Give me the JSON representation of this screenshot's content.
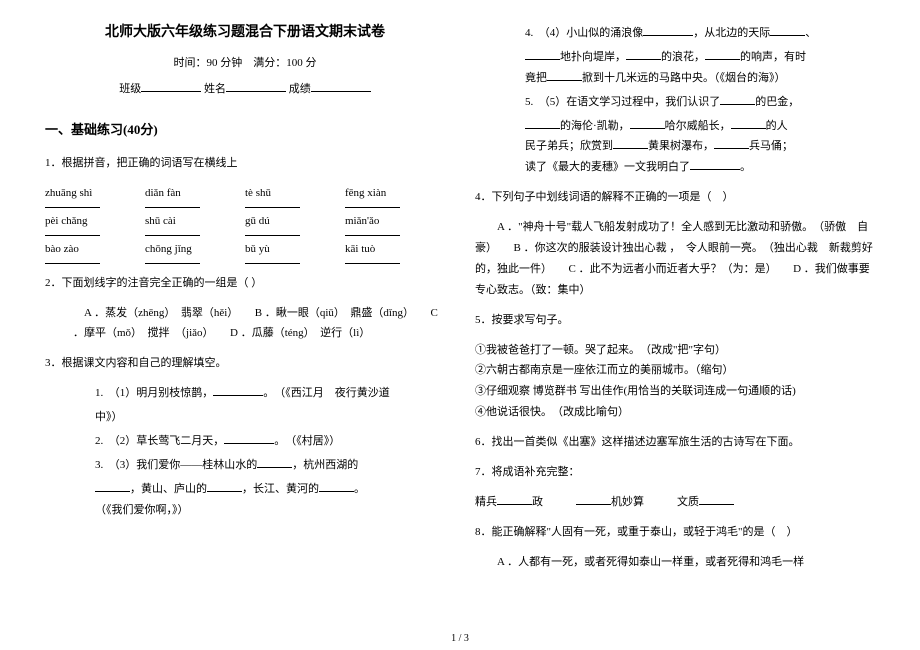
{
  "header": {
    "title": "北师大版六年级练习题混合下册语文期末试卷",
    "time_score": "时间：90 分钟　满分：100 分",
    "class_label": "班级",
    "name_label": "姓名",
    "score_label": "成绩"
  },
  "section1": {
    "heading": "一、基础练习(40分)",
    "q1": {
      "stem": "1．根据拼音，把正确的词语写在横线上",
      "row1": [
        "zhuāng shì",
        "diǎn fàn",
        "tè shū",
        "fēng xiàn"
      ],
      "row2": [
        "pèi chǎng",
        "shū cài",
        "gū dú",
        "miǎn'ǎo"
      ],
      "row3": [
        "bào zào",
        "chōng jǐng",
        "bǔ yù",
        "kāi tuò"
      ]
    },
    "q2": {
      "stem": "2．下面划线字的注音完全正确的一组是（ ）",
      "opts": "　A ．蒸发（zhēng）　翡翠（hěi）　　B ．瞅一眼（qiū）　鼎盛（dǐng）　　C ．摩平（mǒ）　搅拌　（jiǎo）　　D ．瓜藤（téng）　逆行（lì）"
    },
    "q3": {
      "stem": "3．根据课文内容和自己的理解填空。",
      "i1a": "1.　（1）明月别枝惊鹊，",
      "i1b": "。　（《西江月　夜行黄沙道",
      "i1c": "中》）",
      "i2a": "2.　（2）草长莺飞二月天，",
      "i2b": "。　（《村居》）",
      "i3a": "3.　（3）我们爱你——桂林山水的",
      "i3b": "，杭州西湖的",
      "i3c": "，黄山、庐山的",
      "i3d": "，长江、黄河的",
      "i3e": "。",
      "i3f": "（《我们爱你啊，》）"
    },
    "q3r": {
      "i4a": "4.　（4）小山似的涌浪像",
      "i4b": "，从北边的天际",
      "i4c": "、",
      "i4d": "地扑向堤岸，",
      "i4e": "的浪花，",
      "i4f": "的响声，有时",
      "i4g": "竟把",
      "i4h": "掀到十几米远的马路中央。（《烟台的海》）",
      "i5a": "5.　（5）在语文学习过程中，我们认识了",
      "i5b": "的巴金，",
      "i5c": "的海伦·凯勒，",
      "i5d": "哈尔威船长，",
      "i5e": "的人",
      "i5f": "民子弟兵；欣赏到",
      "i5g": "黄果树瀑布，",
      "i5h": "兵马俑；",
      "i5i": "读了《最大的麦穗》一文我明白了",
      "i5j": "。"
    },
    "q4": {
      "stem": "4．下列句子中划线词语的解释不正确的一项是（　）",
      "opts": "　　A ．\"神舟十号\"载人飞船发射成功了！全人感到无比激动和骄傲。　（骄傲　自豪）　　B ．你这次的服装设计独出心裁 ，　令人眼前一亮。　（独出心裁　新裁剪好的，独此一件）　　C ．此不为远者小而近者大乎？（为：是）　　D ．我们做事要专心致志。（致：集中）"
    },
    "q5": {
      "stem": "5．按要求写句子。",
      "i1": "①我被爸爸打了一顿。哭了起来。　（改成\"把\"字句）",
      "i2": "②六朝古都南京是一座依江而立的美丽城市。（缩句）",
      "i3": "③仔细观察 博览群书 写出佳作(用恰当的关联词连成一句通顺的话)",
      "i4": "④他说话很快。　（改成比喻句）"
    },
    "q6": "6．找出一首类似《出塞》这样描述边塞军旅生活的古诗写在下面。",
    "q7": {
      "stem": "7．将成语补充完整：",
      "line": "精兵",
      "b": "政",
      "c": "机妙算",
      "d": "文质"
    },
    "q8": {
      "stem": "8．能正确解释\"人固有一死，或重于泰山，或轻于鸿毛\"的是（　）",
      "optA": "　　A ．人都有一死，或者死得如泰山一样重，或者死得和鸿毛一样"
    }
  },
  "footer": "1 / 3"
}
